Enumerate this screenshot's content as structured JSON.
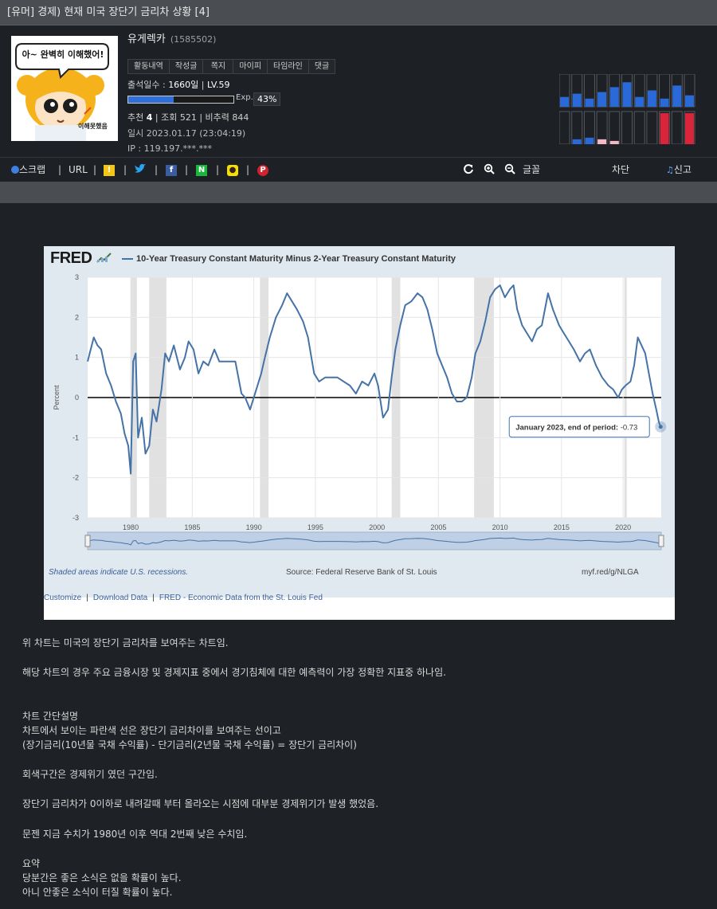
{
  "title": "[유머] 경제) 현재 미국 장단기 금리차 상황 [4]",
  "profile": {
    "speech": "아~ 완벽히 이해했어!",
    "caption": "이해못했음",
    "username": "유게렉카",
    "user_id": "(1585502)",
    "tabs": [
      "활동내역",
      "작성글",
      "쪽지",
      "마이피",
      "타임라인",
      "댓글"
    ],
    "attendance_label": "출석일수 : ",
    "attendance_value": "1660일",
    "level_sep": " | ",
    "level": "LV.59",
    "exp_label": "Exp.",
    "exp_percent": "43%",
    "exp_fraction": 0.43,
    "recommend_label": "추천 ",
    "recommend_value": "4",
    "views": " | 조회 521 | 비추력 844",
    "datetime": "일시 2023.01.17 (23:04:19)",
    "ip": "IP : 119.197.***.***",
    "activity_bars": {
      "top": [
        0.3,
        0.4,
        0.25,
        0.45,
        0.6,
        0.75,
        0.3,
        0.5,
        0.25,
        0.65,
        0.35
      ],
      "bottom": [
        0,
        0.15,
        0.2,
        0.15,
        0.1,
        0,
        0,
        0,
        0.95,
        0,
        0.95
      ],
      "bottom_colors": [
        "#2a6ad8",
        "#2a6ad8",
        "#2a6ad8",
        "#f4b7c6",
        "#f4b7c6",
        "#2a6ad8",
        "#2a6ad8",
        "#2a6ad8",
        "#d9253b",
        "#2a6ad8",
        "#d9253b"
      ]
    }
  },
  "toolbar": {
    "scrap": "스크랩",
    "url": "URL",
    "font": "글꼴",
    "block": "차단",
    "report": "신고",
    "sep": "|"
  },
  "chart_data": {
    "type": "line",
    "logo": "FRED",
    "title": "10-Year Treasury Constant Maturity Minus 2-Year Treasury Constant Maturity",
    "ylabel": "Percent",
    "xlabel": "",
    "ylim": [
      -3,
      3
    ],
    "xlim": [
      1976.5,
      2023.1
    ],
    "yticks": [
      3,
      2,
      1,
      0,
      -1,
      -2,
      -3
    ],
    "xticks": [
      1980,
      1985,
      1990,
      1995,
      2000,
      2005,
      2010,
      2015,
      2020
    ],
    "recessions": [
      [
        1980.0,
        1980.5
      ],
      [
        1981.5,
        1982.9
      ],
      [
        1990.5,
        1991.2
      ],
      [
        2001.2,
        2001.9
      ],
      [
        2007.9,
        2009.5
      ],
      [
        2020.1,
        2020.3
      ]
    ],
    "series": [
      {
        "color": "#4572a7",
        "x": [
          1976.5,
          1977.0,
          1977.3,
          1977.6,
          1978.0,
          1978.4,
          1978.8,
          1979.2,
          1979.5,
          1979.8,
          1980.0,
          1980.2,
          1980.4,
          1980.6,
          1980.9,
          1981.2,
          1981.5,
          1981.8,
          1982.1,
          1982.5,
          1982.8,
          1983.1,
          1983.5,
          1984.0,
          1984.4,
          1984.7,
          1985.1,
          1985.5,
          1985.9,
          1986.3,
          1986.8,
          1987.2,
          1987.6,
          1988.0,
          1988.5,
          1989.0,
          1989.3,
          1989.7,
          1990.2,
          1990.6,
          1990.9,
          1991.3,
          1991.8,
          1992.3,
          1992.7,
          1993.1,
          1993.5,
          1994.0,
          1994.4,
          1994.9,
          1995.3,
          1995.8,
          1996.3,
          1996.8,
          1997.3,
          1997.8,
          1998.3,
          1998.8,
          1999.3,
          1999.8,
          2000.1,
          2000.5,
          2000.9,
          2001.2,
          2001.5,
          2001.9,
          2002.3,
          2002.8,
          2003.3,
          2003.7,
          2004.1,
          2004.5,
          2004.9,
          2005.3,
          2005.7,
          2006.1,
          2006.5,
          2006.9,
          2007.3,
          2007.7,
          2008.0,
          2008.4,
          2008.8,
          2009.2,
          2009.6,
          2010.0,
          2010.4,
          2010.8,
          2011.1,
          2011.4,
          2011.8,
          2012.2,
          2012.6,
          2013.0,
          2013.4,
          2013.9,
          2014.3,
          2014.8,
          2015.2,
          2015.6,
          2016.0,
          2016.5,
          2016.9,
          2017.3,
          2017.8,
          2018.3,
          2018.8,
          2019.2,
          2019.6,
          2019.9,
          2020.2,
          2020.6,
          2020.9,
          2021.2,
          2021.5,
          2021.8,
          2022.1,
          2022.4,
          2022.7,
          2022.9,
          2023.05
        ],
        "values": [
          0.9,
          1.5,
          1.3,
          1.2,
          0.6,
          0.3,
          -0.1,
          -0.4,
          -0.9,
          -1.2,
          -1.9,
          0.9,
          1.1,
          -1.0,
          -0.5,
          -1.4,
          -1.2,
          -0.3,
          -0.6,
          0.2,
          1.1,
          0.9,
          1.3,
          0.7,
          1.0,
          1.4,
          1.2,
          0.6,
          0.9,
          0.8,
          1.2,
          0.9,
          0.9,
          0.9,
          0.9,
          0.1,
          0.0,
          -0.3,
          0.2,
          0.6,
          1.0,
          1.5,
          2.0,
          2.3,
          2.6,
          2.4,
          2.2,
          1.9,
          1.5,
          0.6,
          0.4,
          0.5,
          0.5,
          0.5,
          0.4,
          0.3,
          0.1,
          0.4,
          0.3,
          0.6,
          0.3,
          -0.5,
          -0.3,
          0.5,
          1.2,
          1.8,
          2.3,
          2.4,
          2.6,
          2.5,
          2.2,
          1.7,
          1.1,
          0.8,
          0.5,
          0.1,
          -0.1,
          -0.1,
          0.0,
          0.5,
          1.1,
          1.4,
          1.9,
          2.5,
          2.7,
          2.8,
          2.5,
          2.7,
          2.8,
          2.2,
          1.8,
          1.6,
          1.4,
          1.7,
          1.8,
          2.6,
          2.2,
          1.8,
          1.6,
          1.4,
          1.2,
          0.9,
          1.1,
          1.2,
          0.8,
          0.5,
          0.3,
          0.2,
          0.0,
          0.2,
          0.3,
          0.4,
          0.8,
          1.5,
          1.3,
          1.1,
          0.6,
          0.1,
          -0.3,
          -0.6,
          -0.73
        ]
      }
    ],
    "tooltip": "January 2023, end of period:",
    "tooltip_value": "-0.73",
    "footer_left": "Shaded areas indicate U.S. recessions.",
    "footer_source": "Source: Federal Reserve Bank of St. Louis",
    "footer_url": "myf.red/g/NLGA",
    "link_customize": "Customize",
    "link_download": "Download Data",
    "link_fred": "FRED - Economic Data from the St. Louis Fed",
    "link_sep": "|"
  },
  "body": {
    "p1": "위 차트는 미국의 장단기 금리차를 보여주는 차트임.",
    "p2": "해당 차트의 경우 주요 금융시장 및 경제지표 중에서 경기침체에 대한 예측력이 가장 정확한 지표중 하나임.",
    "p3a": "차트 간단설명",
    "p3b": "차트에서 보이는 파란색 선은 장단기 금리차이를 보여주는 선이고",
    "p3c": "(장기금리(10년물 국채 수익률) - 단기금리(2년물 국채 수익률) = 장단기 금리차이)",
    "p4": "회색구간은 경제위기 였던 구간임.",
    "p5": "장단기 금리차가 0이하로 내려갈때 부터 올라오는 시점에 대부분 경제위기가 발생 했었음.",
    "p6": "문젠 지금 수치가 1980년 이후 역대 2번째 낮은 수치임.",
    "p7a": "요약",
    "p7b": "당분간은 좋은 소식은 없을 확률이 높다.",
    "p7c": "아니 안좋은 소식이 터질 확률이 높다."
  }
}
